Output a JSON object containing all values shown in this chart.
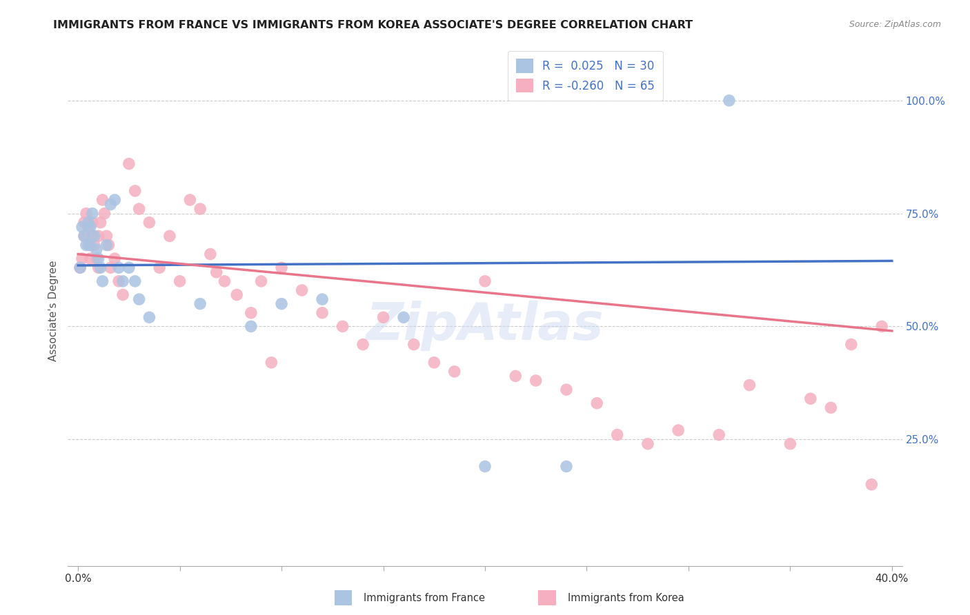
{
  "title": "IMMIGRANTS FROM FRANCE VS IMMIGRANTS FROM KOREA ASSOCIATE'S DEGREE CORRELATION CHART",
  "source": "Source: ZipAtlas.com",
  "ylabel": "Associate's Degree",
  "france_R": 0.025,
  "france_N": 30,
  "korea_R": -0.26,
  "korea_N": 65,
  "france_color": "#aac4e2",
  "korea_color": "#f5afc0",
  "france_line_color": "#4472c4",
  "korea_line_color": "#e8758a",
  "watermark": "ZipAtlas",
  "france_x": [
    0.001,
    0.002,
    0.003,
    0.004,
    0.005,
    0.006,
    0.006,
    0.007,
    0.008,
    0.009,
    0.01,
    0.011,
    0.012,
    0.014,
    0.016,
    0.018,
    0.02,
    0.022,
    0.025,
    0.028,
    0.03,
    0.035,
    0.06,
    0.085,
    0.1,
    0.12,
    0.16,
    0.2,
    0.24,
    0.32
  ],
  "france_y": [
    0.63,
    0.72,
    0.7,
    0.68,
    0.73,
    0.72,
    0.68,
    0.75,
    0.7,
    0.67,
    0.65,
    0.63,
    0.6,
    0.68,
    0.77,
    0.78,
    0.63,
    0.6,
    0.63,
    0.6,
    0.56,
    0.52,
    0.55,
    0.5,
    0.55,
    0.56,
    0.52,
    0.19,
    0.19,
    1.0
  ],
  "korea_x": [
    0.001,
    0.002,
    0.003,
    0.003,
    0.004,
    0.005,
    0.005,
    0.006,
    0.006,
    0.007,
    0.007,
    0.008,
    0.009,
    0.01,
    0.01,
    0.011,
    0.012,
    0.013,
    0.014,
    0.015,
    0.016,
    0.018,
    0.02,
    0.022,
    0.025,
    0.028,
    0.03,
    0.035,
    0.04,
    0.045,
    0.05,
    0.055,
    0.06,
    0.065,
    0.068,
    0.072,
    0.078,
    0.085,
    0.09,
    0.095,
    0.1,
    0.11,
    0.12,
    0.13,
    0.14,
    0.15,
    0.165,
    0.175,
    0.185,
    0.2,
    0.215,
    0.225,
    0.24,
    0.255,
    0.265,
    0.28,
    0.295,
    0.315,
    0.33,
    0.35,
    0.36,
    0.37,
    0.38,
    0.39,
    0.395
  ],
  "korea_y": [
    0.63,
    0.65,
    0.7,
    0.73,
    0.75,
    0.68,
    0.72,
    0.65,
    0.68,
    0.7,
    0.73,
    0.68,
    0.65,
    0.63,
    0.7,
    0.73,
    0.78,
    0.75,
    0.7,
    0.68,
    0.63,
    0.65,
    0.6,
    0.57,
    0.86,
    0.8,
    0.76,
    0.73,
    0.63,
    0.7,
    0.6,
    0.78,
    0.76,
    0.66,
    0.62,
    0.6,
    0.57,
    0.53,
    0.6,
    0.42,
    0.63,
    0.58,
    0.53,
    0.5,
    0.46,
    0.52,
    0.46,
    0.42,
    0.4,
    0.6,
    0.39,
    0.38,
    0.36,
    0.33,
    0.26,
    0.24,
    0.27,
    0.26,
    0.37,
    0.24,
    0.34,
    0.32,
    0.46,
    0.15,
    0.5
  ],
  "xlim": [
    -0.005,
    0.405
  ],
  "ylim": [
    -0.03,
    1.1
  ],
  "france_line_y0": 0.635,
  "france_line_y1": 0.645,
  "korea_line_y0": 0.66,
  "korea_line_y1": 0.49
}
